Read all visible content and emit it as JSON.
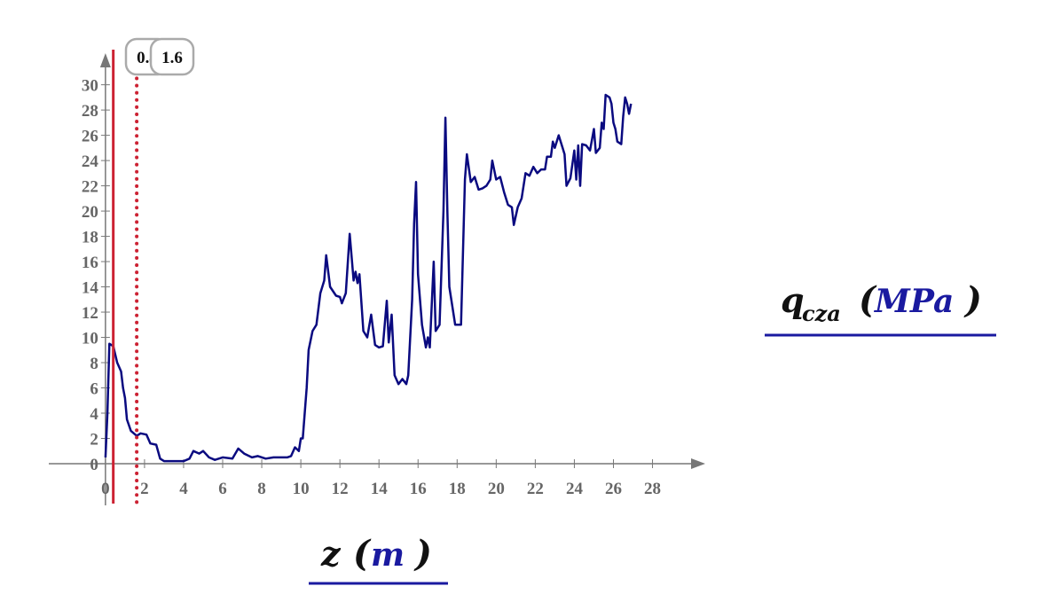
{
  "chart_data": {
    "type": "line",
    "x_label": {
      "symbol": "z",
      "unit": "m"
    },
    "y_label": {
      "symbol": "q",
      "subscript": "cza",
      "unit": "MPa"
    },
    "xlim": [
      -2.9,
      30.7
    ],
    "ylim": [
      -3.3,
      32.5
    ],
    "xticks": [
      0,
      2,
      4,
      6,
      8,
      10,
      12,
      14,
      16,
      18,
      20,
      22,
      24,
      26,
      28
    ],
    "yticks": [
      0,
      2,
      4,
      6,
      8,
      10,
      12,
      14,
      16,
      18,
      20,
      22,
      24,
      26,
      28,
      30
    ],
    "grid": false,
    "markers": [
      0.4,
      1.6
    ],
    "marker_styles": [
      "solid",
      "dotted"
    ],
    "marker_color": "#cc2233",
    "x": [
      0,
      0.1,
      0.2,
      0.4,
      0.6,
      0.8,
      0.9,
      1.0,
      1.1,
      1.3,
      1.6,
      1.8,
      2.1,
      2.3,
      2.6,
      2.8,
      3.0,
      4.0,
      4.3,
      4.5,
      4.8,
      5.0,
      5.3,
      5.6,
      6.0,
      6.5,
      6.8,
      7.1,
      7.5,
      7.8,
      8.2,
      8.6,
      9.0,
      9.3,
      9.5,
      9.7,
      9.9,
      10.0,
      10.1,
      10.3,
      10.4,
      10.6,
      10.8,
      11.0,
      11.2,
      11.3,
      11.5,
      11.8,
      12.0,
      12.1,
      12.3,
      12.5,
      12.7,
      12.8,
      12.9,
      13.0,
      13.2,
      13.4,
      13.6,
      13.8,
      14.0,
      14.2,
      14.4,
      14.5,
      14.65,
      14.8,
      15.0,
      15.2,
      15.4,
      15.5,
      15.6,
      15.7,
      15.8,
      15.9,
      16.0,
      16.2,
      16.4,
      16.5,
      16.6,
      16.8,
      16.9,
      17.1,
      17.3,
      17.4,
      17.5,
      17.6,
      17.8,
      17.9,
      18.2,
      18.4,
      18.5,
      18.7,
      18.9,
      19.1,
      19.3,
      19.5,
      19.7,
      19.8,
      20.0,
      20.2,
      20.4,
      20.6,
      20.8,
      20.9,
      21.1,
      21.3,
      21.5,
      21.7,
      21.9,
      22.1,
      22.3,
      22.5,
      22.6,
      22.8,
      22.9,
      23.0,
      23.2,
      23.4,
      23.5,
      23.6,
      23.8,
      24.0,
      24.1,
      24.2,
      24.3,
      24.4,
      24.6,
      24.8,
      25.0,
      25.1,
      25.3,
      25.4,
      25.5,
      25.6,
      25.8,
      25.9,
      26.0,
      26.1,
      26.2,
      26.4,
      26.5,
      26.6,
      26.7,
      26.8,
      26.9
    ],
    "series": [
      {
        "color": "#0a0a80",
        "values": [
          0.5,
          4,
          9.5,
          9.3,
          8,
          7.3,
          6,
          5.2,
          3.5,
          2.6,
          2.2,
          2.4,
          2.3,
          1.6,
          1.5,
          0.4,
          0.2,
          0.2,
          0.4,
          1.0,
          0.8,
          1.0,
          0.5,
          0.3,
          0.5,
          0.4,
          1.2,
          0.8,
          0.5,
          0.6,
          0.4,
          0.5,
          0.5,
          0.5,
          0.6,
          1.3,
          1.0,
          2.0,
          2.0,
          6,
          9,
          10.5,
          11,
          13.5,
          14.5,
          16.5,
          14,
          13.3,
          13.2,
          12.7,
          13.5,
          18.2,
          14.5,
          15.2,
          14.3,
          15,
          10.5,
          10,
          11.8,
          9.4,
          9.2,
          9.3,
          12.9,
          9.6,
          11.8,
          7,
          6.3,
          6.7,
          6.3,
          7,
          10,
          13,
          19,
          22.3,
          15,
          11,
          9.2,
          10,
          9.2,
          16,
          10.5,
          11,
          20,
          27.4,
          20,
          14,
          12,
          11,
          11,
          22.5,
          24.5,
          22.3,
          22.7,
          21.7,
          21.8,
          22,
          22.5,
          24,
          22.5,
          22.7,
          21.5,
          20.5,
          20.3,
          18.9,
          20.3,
          21,
          23,
          22.8,
          23.5,
          23,
          23.3,
          23.3,
          24.3,
          24.3,
          25.5,
          25,
          26,
          25,
          24.5,
          22,
          22.6,
          24.8,
          22.5,
          25.2,
          22,
          25.3,
          25.2,
          24.8,
          26.5,
          24.6,
          25,
          27,
          26.5,
          29.2,
          29,
          28.5,
          27,
          26.5,
          25.5,
          25.3,
          27.5,
          29,
          28.5,
          27.7,
          28.5
        ]
      }
    ]
  }
}
